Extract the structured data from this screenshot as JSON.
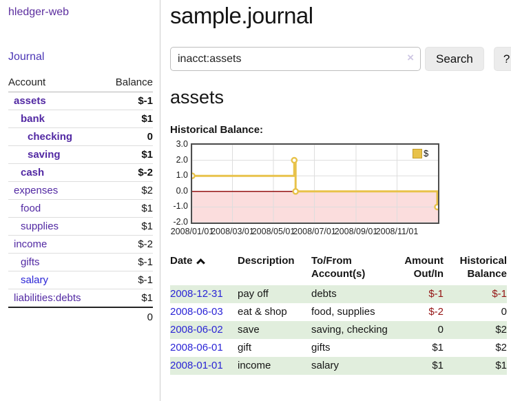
{
  "app": {
    "title": "hledger-web"
  },
  "colors": {
    "accent_purple": "#5229a3",
    "link_blue": "#2a24d6",
    "negative_strong": "#9c0505",
    "negative_soft": "#bf7d7d",
    "stripe_green": "#e1eedd",
    "button_gray": "#ececec"
  },
  "sidebar": {
    "journal_link": "Journal",
    "table": {
      "headers": [
        "Account",
        "Balance"
      ],
      "rows": [
        {
          "account": "assets",
          "balance": "$-1",
          "depth": 1,
          "bold": true,
          "bal_class": "neg-strong"
        },
        {
          "account": "bank",
          "balance": "$1",
          "depth": 2,
          "bold": true,
          "bal_class": ""
        },
        {
          "account": "checking",
          "balance": "0",
          "depth": 3,
          "bold": true,
          "bal_class": ""
        },
        {
          "account": "saving",
          "balance": "$1",
          "depth": 3,
          "bold": true,
          "bal_class": ""
        },
        {
          "account": "cash",
          "balance": "$-2",
          "depth": 2,
          "bold": true,
          "bal_class": "neg-strong"
        },
        {
          "account": "expenses",
          "balance": "$2",
          "depth": 1,
          "bold": false,
          "bal_class": ""
        },
        {
          "account": "food",
          "balance": "$1",
          "depth": 2,
          "bold": false,
          "bal_class": ""
        },
        {
          "account": "supplies",
          "balance": "$1",
          "depth": 2,
          "bold": false,
          "bal_class": ""
        },
        {
          "account": "income",
          "balance": "$-2",
          "depth": 1,
          "bold": false,
          "bal_class": "neg-soft"
        },
        {
          "account": "gifts",
          "balance": "$-1",
          "depth": 2,
          "bold": false,
          "bal_class": "neg-soft"
        },
        {
          "account": "salary",
          "balance": "$-1",
          "depth": 2,
          "bold": false,
          "bal_class": "neg-soft",
          "blue": true
        },
        {
          "account": "liabilities:debts",
          "balance": "$1",
          "depth": 1,
          "bold": false,
          "bal_class": ""
        }
      ],
      "total": "0"
    }
  },
  "main": {
    "title": "sample.journal",
    "search": {
      "value": "inacct:assets",
      "clear_icon": "×",
      "button": "Search",
      "help_button": "?"
    },
    "account_heading": "assets",
    "chart_label": "Historical Balance:"
  },
  "chart_data": {
    "type": "line",
    "title": "Historical Balance:",
    "step": "after",
    "series": [
      {
        "name": "$",
        "points": [
          {
            "date": "2008-01-01",
            "value": 1
          },
          {
            "date": "2008-06-01",
            "value": 2
          },
          {
            "date": "2008-06-03",
            "value": 0
          },
          {
            "date": "2008-12-31",
            "value": -1
          }
        ]
      }
    ],
    "xlim": [
      "2008-01-01",
      "2009-01-01"
    ],
    "ylim": [
      -2,
      3
    ],
    "yticks": [
      "3.0",
      "2.0",
      "1.0",
      "0.0",
      "-1.0",
      "-2.0"
    ],
    "ytick_values": [
      3,
      2,
      1,
      0,
      -1,
      -2
    ],
    "xticks": [
      {
        "date": "2008-01-01",
        "label": "2008/01/01"
      },
      {
        "date": "2008-03-01",
        "label": "2008/03/01"
      },
      {
        "date": "2008-05-01",
        "label": "2008/05/01"
      },
      {
        "date": "2008-07-01",
        "label": "2008/07/01"
      },
      {
        "date": "2008-09-01",
        "label": "2008/09/01"
      },
      {
        "date": "2008-11-01",
        "label": "2008/11/01"
      }
    ],
    "legend_position": "top-right",
    "grid": true,
    "line_color": "#e8c24a",
    "marker_fill": "#ffffff",
    "negative_region_color": "#fbdddd",
    "zero_line_color": "#8b0000",
    "grid_color": "#dddddd"
  },
  "register": {
    "headers": {
      "date": "Date",
      "description": "Description",
      "accounts": "To/From Account(s)",
      "amount": "Amount Out/In",
      "balance": "Historical Balance"
    },
    "rows": [
      {
        "date": "2008-12-31",
        "description": "pay off",
        "accounts": "debts",
        "amount": "$-1",
        "balance": "$-1",
        "amount_neg": true,
        "balance_neg": true
      },
      {
        "date": "2008-06-03",
        "description": "eat & shop",
        "accounts": "food, supplies",
        "amount": "$-2",
        "balance": "0",
        "amount_neg": true,
        "balance_neg": false
      },
      {
        "date": "2008-06-02",
        "description": "save",
        "accounts": "saving, checking",
        "amount": "0",
        "balance": "$2",
        "amount_neg": false,
        "balance_neg": false
      },
      {
        "date": "2008-06-01",
        "description": "gift",
        "accounts": "gifts",
        "amount": "$1",
        "balance": "$2",
        "amount_neg": false,
        "balance_neg": false
      },
      {
        "date": "2008-01-01",
        "description": "income",
        "accounts": "salary",
        "amount": "$1",
        "balance": "$1",
        "amount_neg": false,
        "balance_neg": false
      }
    ]
  }
}
